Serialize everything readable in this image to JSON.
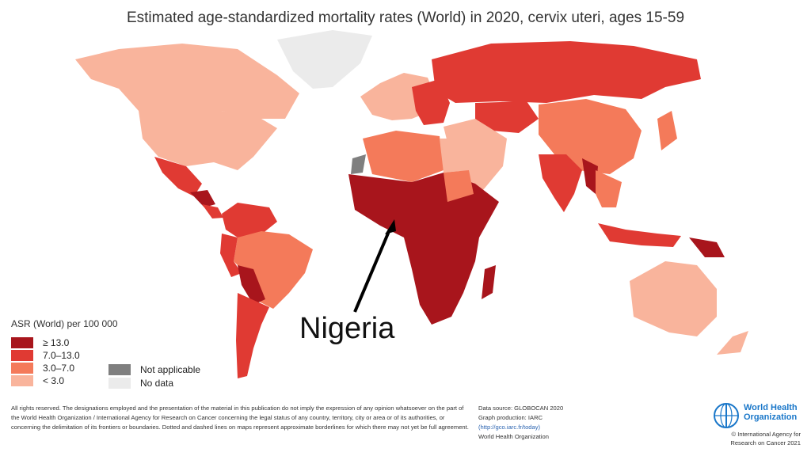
{
  "title": "Estimated age-standardized mortality rates (World) in 2020, cervix uteri, ages 15-59",
  "legend": {
    "title": "ASR (World) per 100 000",
    "classes": [
      {
        "label": "≥ 13.0",
        "color": "#a8151c"
      },
      {
        "label": "7.0–13.0",
        "color": "#e03a33"
      },
      {
        "label": "3.0–7.0",
        "color": "#f47a5a"
      },
      {
        "label": "< 3.0",
        "color": "#f9b49c"
      }
    ],
    "extra": [
      {
        "label": "Not applicable",
        "color": "#7f7f7f"
      },
      {
        "label": "No data",
        "color": "#ebebeb"
      }
    ]
  },
  "annotation": {
    "label": "Nigeria"
  },
  "disclaimer": "All rights reserved. The designations employed and the presentation of the material in this publication do not imply the expression of any opinion whatsoever on the part of the World Health Organization / International Agency for Research on Cancer concerning the legal status of any country, territory, city or area or of its authorities, or concerning the delimitation of its frontiers or boundaries. Dotted and dashed lines on maps represent approximate borderlines for which there may not yet be full agreement.",
  "source": {
    "data": "Data source: GLOBOCAN 2020",
    "graph": "Graph production: IARC",
    "url": "(http://gco.iarc.fr/today)",
    "org": "World Health Organization"
  },
  "who": {
    "line1": "World Health",
    "line2": "Organization",
    "copyright1": "© International Agency for",
    "copyright2": "Research on Cancer 2021"
  }
}
